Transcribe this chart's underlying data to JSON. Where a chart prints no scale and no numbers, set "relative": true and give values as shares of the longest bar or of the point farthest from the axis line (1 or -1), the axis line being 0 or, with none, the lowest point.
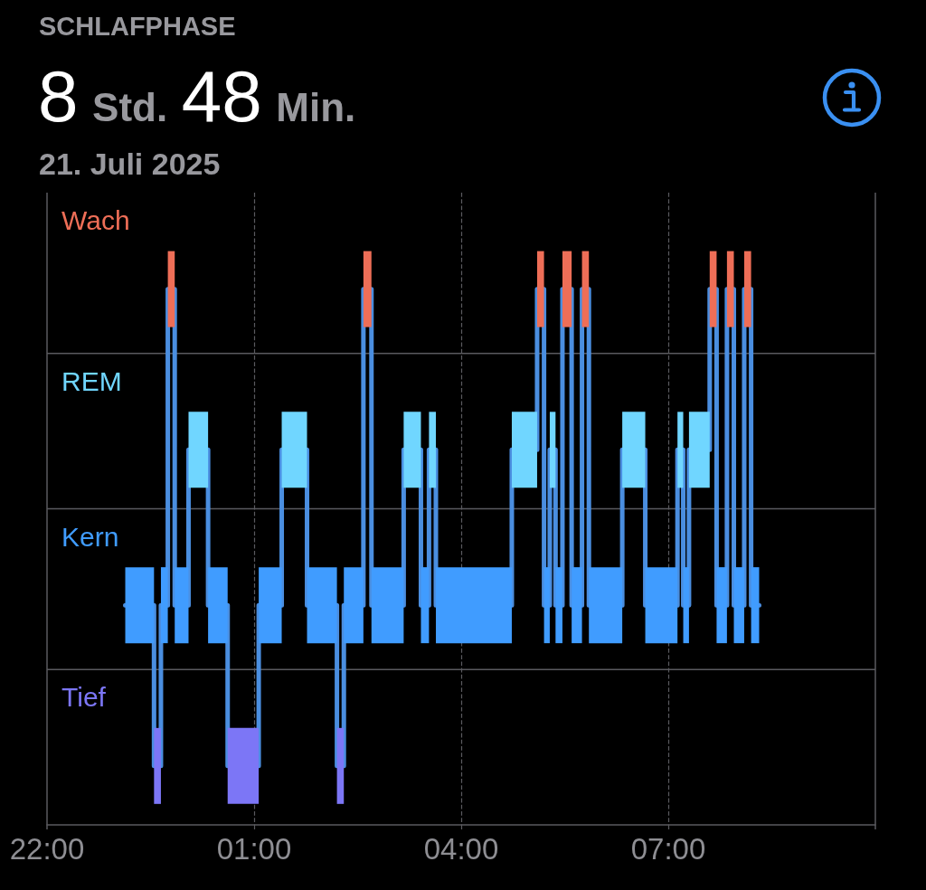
{
  "chart_data": {
    "type": "line",
    "title": "SCHLAFPHASE",
    "subtitle": "8 Std. 48 Min.",
    "annotations": [
      "21. Juli 2025"
    ],
    "series": [
      {
        "name": "Kern",
        "color": "#409cff",
        "x": [
          "2025-07-20T23:08",
          "2025-07-20T23:33"
        ],
        "values": [
          0.41,
          0.41
        ]
      },
      {
        "name": "Tief",
        "color": "#7c76f6",
        "x": [
          "2025-07-20T23:33",
          "2025-07-20T23:39"
        ],
        "values": [
          0.11,
          0.11
        ]
      },
      {
        "color": "#409cff",
        "x": [
          "2025-07-20T23:39",
          "2025-07-20T23:45"
        ],
        "values": [
          0.41,
          0.41
        ]
      },
      {
        "name": "Wach",
        "color": "#ee6e57",
        "x": [
          "2025-07-20T23:45",
          "2025-07-20T23:51"
        ],
        "values": [
          1,
          1
        ]
      },
      {
        "color": "#409cff",
        "x": [
          "2025-07-20T23:51",
          "2025-07-21T00:03"
        ],
        "values": [
          0.41,
          0.41
        ]
      },
      {
        "name": "REM",
        "color": "#70d6ff",
        "x": [
          "2025-07-21T00:03",
          "2025-07-21T00:20"
        ],
        "values": [
          0.7,
          0.7
        ]
      },
      {
        "color": "#409cff",
        "x": [
          "2025-07-21T00:20",
          "2025-07-21T00:37"
        ],
        "values": [
          0.41,
          0.41
        ]
      },
      {
        "color": "#7c76f6",
        "x": [
          "2025-07-21T00:37",
          "2025-07-21T01:04"
        ],
        "values": [
          0.11,
          0.11
        ]
      },
      {
        "color": "#409cff",
        "x": [
          "2025-07-21T01:04",
          "2025-07-21T01:24"
        ],
        "values": [
          0.41,
          0.41
        ]
      },
      {
        "color": "#70d6ff",
        "x": [
          "2025-07-21T01:24",
          "2025-07-21T01:46"
        ],
        "values": [
          0.7,
          0.7
        ]
      },
      {
        "color": "#409cff",
        "x": [
          "2025-07-21T01:46",
          "2025-07-21T02:12"
        ],
        "values": [
          0.41,
          0.41
        ]
      },
      {
        "color": "#7c76f6",
        "x": [
          "2025-07-21T02:12",
          "2025-07-21T02:18"
        ],
        "values": [
          0.11,
          0.11
        ]
      },
      {
        "color": "#409cff",
        "x": [
          "2025-07-21T02:18",
          "2025-07-21T02:35"
        ],
        "values": [
          0.41,
          0.41
        ]
      },
      {
        "color": "#ee6e57",
        "x": [
          "2025-07-21T02:35",
          "2025-07-21T02:42"
        ],
        "values": [
          1,
          1
        ]
      },
      {
        "color": "#409cff",
        "x": [
          "2025-07-21T02:42",
          "2025-07-21T03:10"
        ],
        "values": [
          0.41,
          0.41
        ]
      },
      {
        "color": "#70d6ff",
        "x": [
          "2025-07-21T03:10",
          "2025-07-21T03:25"
        ],
        "values": [
          0.7,
          0.7
        ]
      },
      {
        "color": "#409cff",
        "x": [
          "2025-07-21T03:25",
          "2025-07-21T03:32"
        ],
        "values": [
          0.41,
          0.41
        ]
      },
      {
        "color": "#70d6ff",
        "x": [
          "2025-07-21T03:32",
          "2025-07-21T03:38"
        ],
        "values": [
          0.7,
          0.7
        ]
      },
      {
        "color": "#409cff",
        "x": [
          "2025-07-21T03:38",
          "2025-07-21T04:44"
        ],
        "values": [
          0.41,
          0.41
        ]
      },
      {
        "color": "#70d6ff",
        "x": [
          "2025-07-21T04:44",
          "2025-07-21T05:06"
        ],
        "values": [
          0.7,
          0.7
        ]
      },
      {
        "color": "#ee6e57",
        "x": [
          "2025-07-21T05:06",
          "2025-07-21T05:12"
        ],
        "values": [
          1,
          1
        ]
      },
      {
        "color": "#409cff",
        "x": [
          "2025-07-21T05:12",
          "2025-07-21T05:17"
        ],
        "values": [
          0.41,
          0.41
        ]
      },
      {
        "color": "#70d6ff",
        "x": [
          "2025-07-21T05:17",
          "2025-07-21T05:22"
        ],
        "values": [
          0.7,
          0.7
        ]
      },
      {
        "color": "#409cff",
        "x": [
          "2025-07-21T05:22",
          "2025-07-21T05:28"
        ],
        "values": [
          0.41,
          0.41
        ]
      },
      {
        "color": "#ee6e57",
        "x": [
          "2025-07-21T05:28",
          "2025-07-21T05:36"
        ],
        "values": [
          1,
          1
        ]
      },
      {
        "color": "#409cff",
        "x": [
          "2025-07-21T05:36",
          "2025-07-21T05:45"
        ],
        "values": [
          0.41,
          0.41
        ]
      },
      {
        "color": "#ee6e57",
        "x": [
          "2025-07-21T05:45",
          "2025-07-21T05:51"
        ],
        "values": [
          1,
          1
        ]
      },
      {
        "color": "#409cff",
        "x": [
          "2025-07-21T05:51",
          "2025-07-21T06:20"
        ],
        "values": [
          0.41,
          0.41
        ]
      },
      {
        "color": "#70d6ff",
        "x": [
          "2025-07-21T06:20",
          "2025-07-21T06:40"
        ],
        "values": [
          0.7,
          0.7
        ]
      },
      {
        "color": "#409cff",
        "x": [
          "2025-07-21T06:40",
          "2025-07-21T07:08"
        ],
        "values": [
          0.41,
          0.41
        ]
      },
      {
        "color": "#70d6ff",
        "x": [
          "2025-07-21T07:08",
          "2025-07-21T07:13"
        ],
        "values": [
          0.7,
          0.7
        ]
      },
      {
        "color": "#409cff",
        "x": [
          "2025-07-21T07:13",
          "2025-07-21T07:18"
        ],
        "values": [
          0.41,
          0.41
        ]
      },
      {
        "color": "#70d6ff",
        "x": [
          "2025-07-21T07:18",
          "2025-07-21T07:36"
        ],
        "values": [
          0.7,
          0.7
        ]
      },
      {
        "color": "#ee6e57",
        "x": [
          "2025-07-21T07:36",
          "2025-07-21T07:42"
        ],
        "values": [
          1,
          1
        ]
      },
      {
        "color": "#409cff",
        "x": [
          "2025-07-21T07:42",
          "2025-07-21T07:51"
        ],
        "values": [
          0.41,
          0.41
        ]
      },
      {
        "color": "#ee6e57",
        "x": [
          "2025-07-21T07:51",
          "2025-07-21T07:57"
        ],
        "values": [
          1,
          1
        ]
      },
      {
        "color": "#409cff",
        "x": [
          "2025-07-21T07:57",
          "2025-07-21T08:06"
        ],
        "values": [
          0.41,
          0.41
        ]
      },
      {
        "color": "#ee6e57",
        "x": [
          "2025-07-21T08:06",
          "2025-07-21T08:12"
        ],
        "values": [
          1,
          1
        ]
      },
      {
        "color": "#409cff",
        "x": [
          "2025-07-21T08:12",
          "2025-07-21T08:19"
        ],
        "values": [
          0.41,
          0.41
        ]
      },
      {
        "type": "step",
        "color": "#4a8ee0",
        "x": [
          "2025-07-20T23:08",
          "2025-07-20T23:33",
          "2025-07-20T23:39",
          "2025-07-20T23:45",
          "2025-07-20T23:51",
          "2025-07-21T00:03",
          "2025-07-21T00:20",
          "2025-07-21T00:37",
          "2025-07-21T01:04",
          "2025-07-21T01:24",
          "2025-07-21T01:46",
          "2025-07-21T02:12",
          "2025-07-21T02:18",
          "2025-07-21T02:35",
          "2025-07-21T02:42",
          "2025-07-21T03:10",
          "2025-07-21T03:25",
          "2025-07-21T03:32",
          "2025-07-21T03:38",
          "2025-07-21T04:44",
          "2025-07-21T05:06",
          "2025-07-21T05:12",
          "2025-07-21T05:17",
          "2025-07-21T05:22",
          "2025-07-21T05:28",
          "2025-07-21T05:36",
          "2025-07-21T05:45",
          "2025-07-21T05:51",
          "2025-07-21T06:20",
          "2025-07-21T06:40",
          "2025-07-21T07:08",
          "2025-07-21T07:13",
          "2025-07-21T07:18",
          "2025-07-21T07:36",
          "2025-07-21T07:42",
          "2025-07-21T07:51",
          "2025-07-21T07:57",
          "2025-07-21T08:06",
          "2025-07-21T08:12",
          "2025-07-21T08:19"
        ],
        "values": [
          0.41,
          0.11,
          0.41,
          1,
          0.41,
          0.7,
          0.41,
          0.11,
          0.41,
          0.7,
          0.41,
          0.11,
          0.41,
          1,
          0.41,
          0.7,
          0.41,
          0.7,
          0.41,
          0.7,
          1,
          0.41,
          0.7,
          0.41,
          1,
          0.41,
          1,
          0.41,
          0.7,
          0.41,
          0.7,
          0.41,
          0.7,
          1,
          0.41,
          1,
          0.41,
          1,
          0.41,
          0.41
        ]
      }
    ],
    "relative": true,
    "xlim": [
      "2025-07-20T22:00",
      "2025-07-21T10:00"
    ],
    "xticks": [
      {
        "value": "2025-07-20T22:00",
        "label": "22:00"
      },
      {
        "value": "2025-07-21T01:00",
        "label": "01:00"
      },
      {
        "value": "2025-07-21T04:00",
        "label": "04:00"
      },
      {
        "value": "2025-07-21T07:00",
        "label": "07:00"
      },
      {
        "value": "2025-07-21T10:00",
        "label": null
      }
    ],
    "ref_lines": [
      {
        "axis": "y",
        "value": 0.88
      },
      {
        "axis": "y",
        "value": 0.59
      },
      {
        "axis": "y",
        "value": 0.29
      }
    ],
    "grid": "x",
    "marker": "none"
  }
}
